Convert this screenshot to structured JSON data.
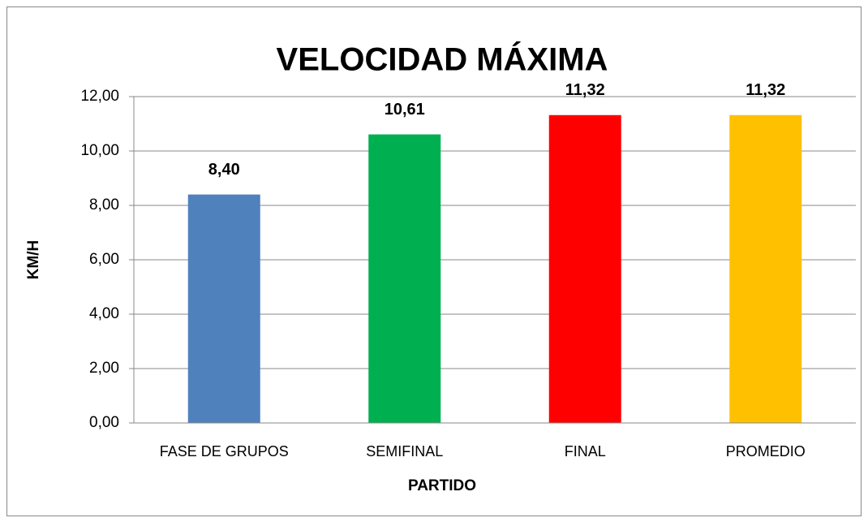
{
  "chart_data": {
    "type": "bar",
    "title": "VELOCIDAD MÁXIMA",
    "x_label": "PARTIDO",
    "y_label": "KM/H",
    "categories": [
      "FASE DE GRUPOS",
      "SEMIFINAL",
      "FINAL",
      "PROMEDIO"
    ],
    "values": [
      8.4,
      10.61,
      11.32,
      11.32
    ],
    "value_labels": [
      "8,40",
      "10,61",
      "11,32",
      "11,32"
    ],
    "colors": [
      "#4f81bd",
      "#00b050",
      "#ff0000",
      "#ffc000"
    ],
    "ylim": [
      0,
      12
    ],
    "yticks": [
      {
        "value": 0,
        "label": "0,00"
      },
      {
        "value": 2,
        "label": "2,00"
      },
      {
        "value": 4,
        "label": "4,00"
      },
      {
        "value": 6,
        "label": "6,00"
      },
      {
        "value": 8,
        "label": "8,00"
      },
      {
        "value": 10,
        "label": "10,00"
      },
      {
        "value": 12,
        "label": "12,00"
      }
    ],
    "grid": true
  }
}
